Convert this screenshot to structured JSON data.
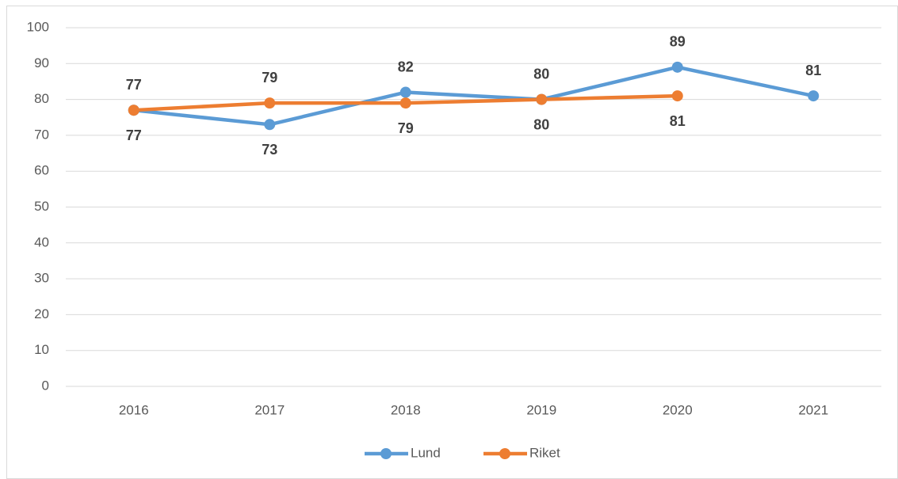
{
  "chart_data": {
    "type": "line",
    "categories": [
      "2016",
      "2017",
      "2018",
      "2019",
      "2020",
      "2021"
    ],
    "series": [
      {
        "name": "Lund",
        "color": "#5b9bd5",
        "values": [
          77,
          73,
          82,
          80,
          89,
          81
        ]
      },
      {
        "name": "Riket",
        "color": "#ed7d31",
        "values": [
          77,
          79,
          79,
          80,
          81,
          null
        ]
      }
    ],
    "ylim": [
      0,
      100
    ],
    "yticks": [
      0,
      10,
      20,
      30,
      40,
      50,
      60,
      70,
      80,
      90,
      100
    ],
    "grid": true,
    "legend": "bottom",
    "data_labels": true
  }
}
